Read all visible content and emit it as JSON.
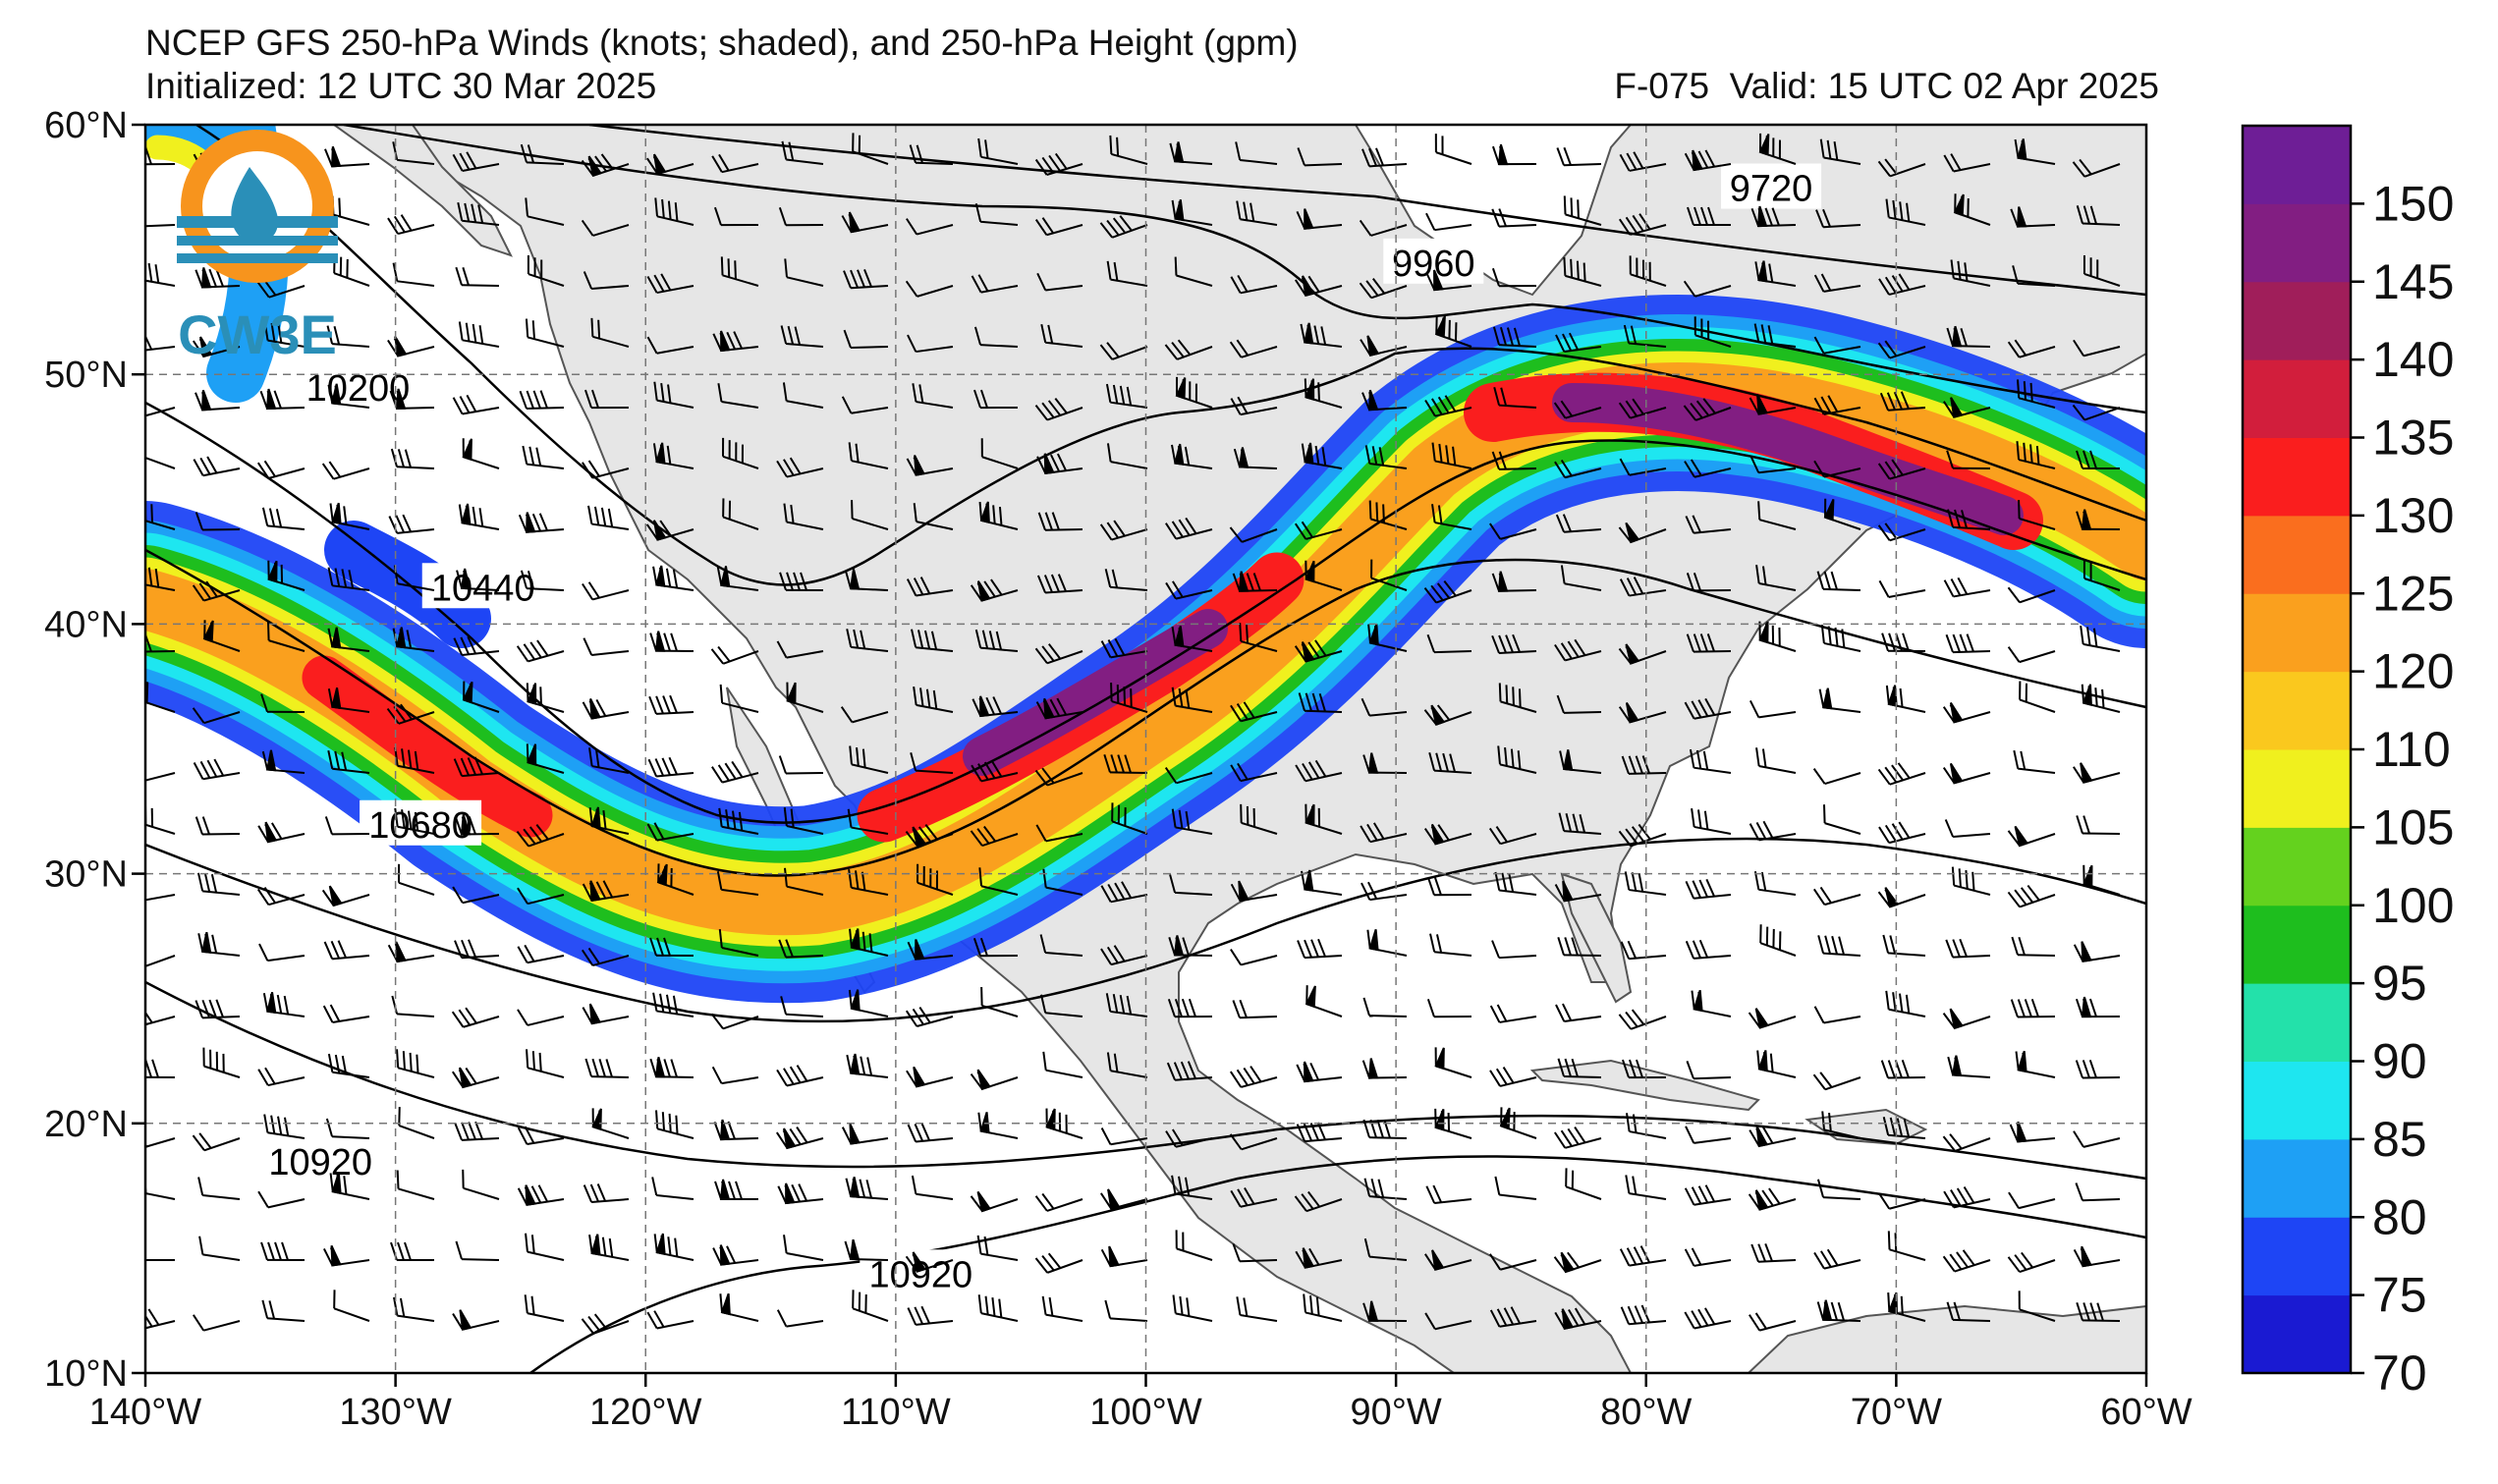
{
  "title": {
    "line1": "NCEP GFS 250-hPa Winds (knots; shaded), and 250-hPa Height (gpm)",
    "initialized": "Initialized: 12 UTC 30 Mar 2025",
    "forecast": "F-075",
    "valid": "Valid: 15 UTC 02 Apr 2025"
  },
  "logo": {
    "text": "CW3E",
    "colors": {
      "sun": "#f7941d",
      "water": "#2a8fb8"
    }
  },
  "map_data": {
    "extent": {
      "lon": [
        -140,
        -60
      ],
      "lat": [
        10,
        60
      ]
    },
    "lat_ticks": [
      "10°N",
      "20°N",
      "30°N",
      "40°N",
      "50°N",
      "60°N"
    ],
    "lon_ticks": [
      "140°W",
      "130°W",
      "120°W",
      "110°W",
      "100°W",
      "90°W",
      "80°W",
      "70°W",
      "60°W"
    ],
    "gridlines": "dashed",
    "land_color": "#e6e6e6",
    "contour_labels": [
      {
        "text": "9720",
        "lon": -75,
        "lat": 57.5
      },
      {
        "text": "9960",
        "lon": -88.5,
        "lat": 54.5
      },
      {
        "text": "10200",
        "lon": -131.5,
        "lat": 49.5
      },
      {
        "text": "10440",
        "lon": -126.5,
        "lat": 41.5
      },
      {
        "text": "10680",
        "lon": -129,
        "lat": 32
      },
      {
        "text": "10920",
        "lon": -133,
        "lat": 18.5
      },
      {
        "text": "10920",
        "lon": -109,
        "lat": 14
      }
    ]
  },
  "colorbar": {
    "ticks": [
      "70",
      "75",
      "80",
      "85",
      "90",
      "95",
      "100",
      "105",
      "110",
      "120",
      "125",
      "130",
      "135",
      "140",
      "145",
      "150"
    ],
    "colors": [
      "#1a1ad2",
      "#1e45f5",
      "#1ea0f5",
      "#1ee6f0",
      "#23e1aa",
      "#1ebe1e",
      "#64d21e",
      "#f0f01e",
      "#fac81e",
      "#faa01e",
      "#fa6e1e",
      "#fa1e1e",
      "#d21e3c",
      "#a01e5a",
      "#821e82",
      "#6e1e96"
    ]
  }
}
